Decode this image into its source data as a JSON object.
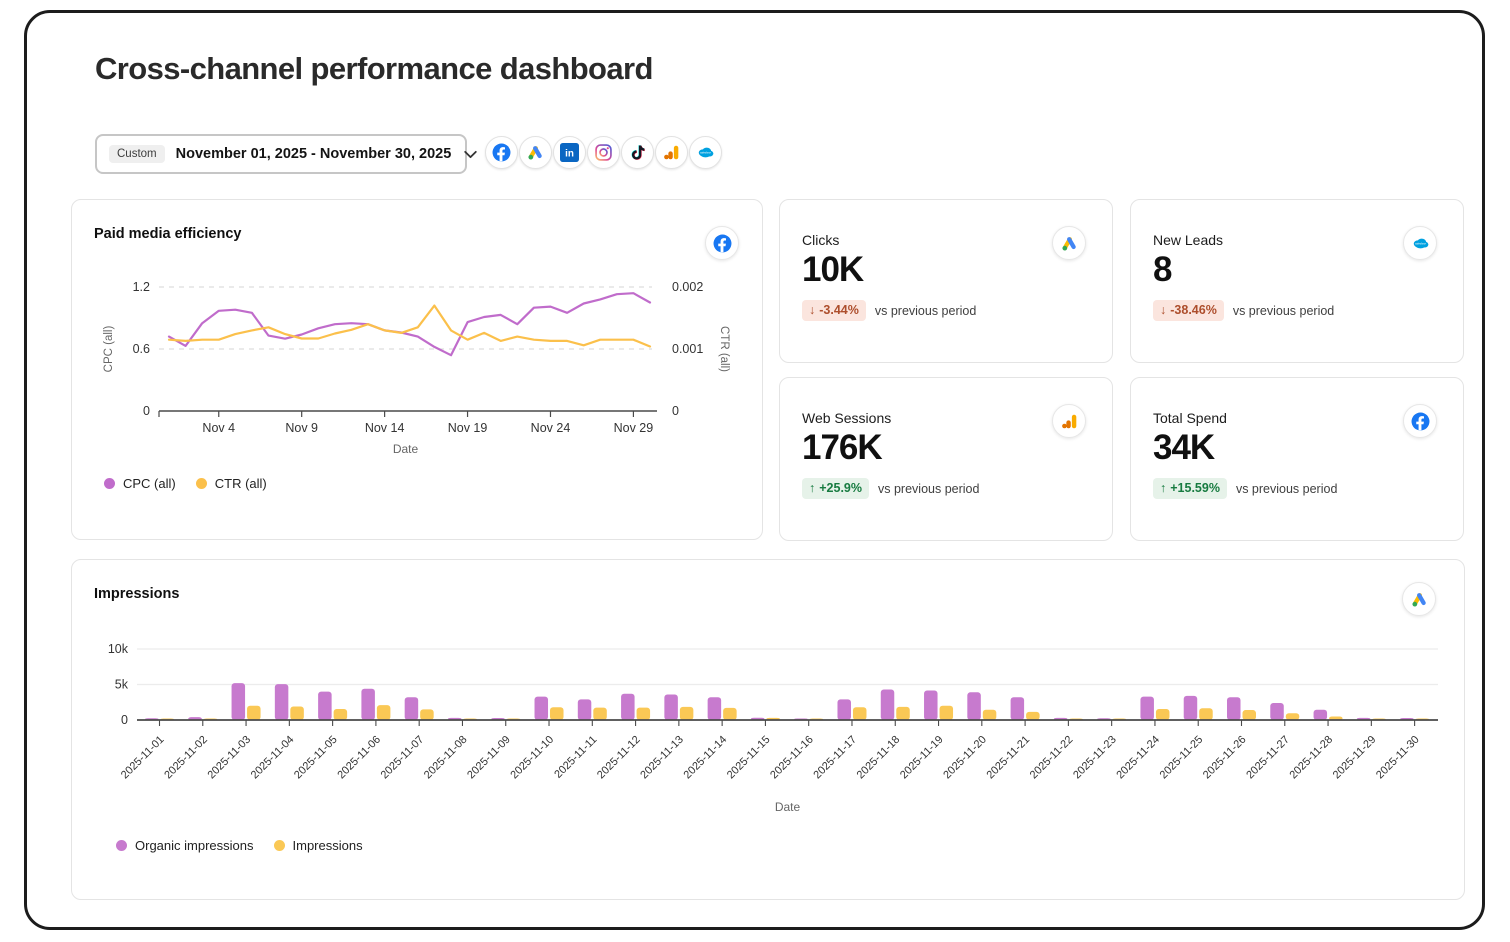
{
  "page": {
    "title": "Cross-channel performance dashboard"
  },
  "date_picker": {
    "preset_label": "Custom",
    "range": "November 01, 2025 - November 30, 2025"
  },
  "platforms": [
    {
      "name": "facebook"
    },
    {
      "name": "google-ads"
    },
    {
      "name": "linkedin"
    },
    {
      "name": "instagram"
    },
    {
      "name": "tiktok"
    },
    {
      "name": "google-analytics"
    },
    {
      "name": "salesforce"
    }
  ],
  "kpis": [
    {
      "label": "Clicks",
      "value": "10K",
      "icon": "google-ads",
      "delta": "-3.44%",
      "direction": "down",
      "compare": "vs previous period"
    },
    {
      "label": "New Leads",
      "value": "8",
      "icon": "salesforce",
      "delta": "-38.46%",
      "direction": "down",
      "compare": "vs previous period"
    },
    {
      "label": "Web Sessions",
      "value": "176K",
      "icon": "google-analytics",
      "delta": "+25.9%",
      "direction": "up",
      "compare": "vs previous period"
    },
    {
      "label": "Total Spend",
      "value": "34K",
      "icon": "facebook",
      "delta": "+15.59%",
      "direction": "up",
      "compare": "vs previous period"
    }
  ],
  "colors": {
    "purple": "#C06CCB",
    "yellow": "#FBC04B",
    "delta_down_bg": "#FBE5DE",
    "delta_down_text": "#AD4E2C",
    "delta_up_bg": "#E6F2E9",
    "delta_up_text": "#177B40",
    "facebook_blue": "#1877F2",
    "linkedin_blue": "#0A66C2",
    "salesforce_blue": "#00A1E0",
    "analytics_orange": "#F9AB00"
  },
  "chart_data": [
    {
      "type": "line",
      "title": "Paid media efficiency",
      "source_icon": "facebook",
      "xlabel": "Date",
      "x": [
        "2025-11-01",
        "2025-11-02",
        "2025-11-03",
        "2025-11-04",
        "2025-11-05",
        "2025-11-06",
        "2025-11-07",
        "2025-11-08",
        "2025-11-09",
        "2025-11-10",
        "2025-11-11",
        "2025-11-12",
        "2025-11-13",
        "2025-11-14",
        "2025-11-15",
        "2025-11-16",
        "2025-11-17",
        "2025-11-18",
        "2025-11-19",
        "2025-11-20",
        "2025-11-21",
        "2025-11-22",
        "2025-11-23",
        "2025-11-24",
        "2025-11-25",
        "2025-11-26",
        "2025-11-27",
        "2025-11-28",
        "2025-11-29",
        "2025-11-30"
      ],
      "x_ticks": [
        {
          "day": 4,
          "label": "Nov 4"
        },
        {
          "day": 9,
          "label": "Nov 9"
        },
        {
          "day": 14,
          "label": "Nov 14"
        },
        {
          "day": 19,
          "label": "Nov 19"
        },
        {
          "day": 24,
          "label": "Nov 24"
        },
        {
          "day": 29,
          "label": "Nov 29"
        }
      ],
      "left_axis": {
        "label": "CPC (all)",
        "max": 1.2,
        "ticks": [
          "0",
          "0.6",
          "1.2"
        ]
      },
      "right_axis": {
        "label": "CTR (all)",
        "max": 0.002,
        "ticks": [
          "0",
          "0.001",
          "0.002"
        ]
      },
      "grid": "dashed-horizontal",
      "legend_position": "bottom",
      "series": [
        {
          "name": "CPC (all)",
          "axis": "left",
          "color": "#C06CCB",
          "values": [
            0.72,
            0.63,
            0.85,
            0.97,
            0.98,
            0.95,
            0.73,
            0.7,
            0.74,
            0.8,
            0.84,
            0.85,
            0.84,
            0.78,
            0.76,
            0.72,
            0.62,
            0.54,
            0.86,
            0.91,
            0.93,
            0.84,
            1.0,
            1.01,
            0.95,
            1.04,
            1.08,
            1.13,
            1.14,
            1.05
          ]
        },
        {
          "name": "CTR (all)",
          "axis": "right",
          "color": "#FBC04B",
          "values": [
            0.00115,
            0.00113,
            0.00115,
            0.00115,
            0.00124,
            0.0013,
            0.00135,
            0.00124,
            0.00117,
            0.00117,
            0.00125,
            0.00131,
            0.0014,
            0.0013,
            0.00126,
            0.00135,
            0.0017,
            0.0013,
            0.00115,
            0.00126,
            0.00113,
            0.0012,
            0.00115,
            0.00113,
            0.00113,
            0.00106,
            0.00115,
            0.00115,
            0.00115,
            0.00104
          ]
        }
      ]
    },
    {
      "type": "bar",
      "title": "Impressions",
      "source_icon": "google-ads",
      "xlabel": "Date",
      "categories": [
        "2025-11-01",
        "2025-11-02",
        "2025-11-03",
        "2025-11-04",
        "2025-11-05",
        "2025-11-06",
        "2025-11-07",
        "2025-11-08",
        "2025-11-09",
        "2025-11-10",
        "2025-11-11",
        "2025-11-12",
        "2025-11-13",
        "2025-11-14",
        "2025-11-15",
        "2025-11-16",
        "2025-11-17",
        "2025-11-18",
        "2025-11-19",
        "2025-11-20",
        "2025-11-21",
        "2025-11-22",
        "2025-11-23",
        "2025-11-24",
        "2025-11-25",
        "2025-11-26",
        "2025-11-27",
        "2025-11-28",
        "2025-11-29",
        "2025-11-30"
      ],
      "y_ticks": [
        "0",
        "5k",
        "10k"
      ],
      "y_tick_values": [
        0,
        5000,
        10000
      ],
      "ylim": [
        0,
        12000
      ],
      "grid": "solid-horizontal",
      "legend_position": "bottom",
      "series": [
        {
          "name": "Organic impressions",
          "color": "#C77ACE",
          "values": [
            250,
            400,
            5200,
            5050,
            4000,
            4400,
            3200,
            300,
            280,
            3300,
            2900,
            3700,
            3600,
            3200,
            320,
            220,
            2900,
            4300,
            4150,
            3900,
            3200,
            300,
            250,
            3300,
            3400,
            3200,
            2400,
            1450,
            300,
            280
          ]
        },
        {
          "name": "Impressions",
          "color": "#FAC855",
          "values": [
            120,
            130,
            2000,
            1900,
            1550,
            2100,
            1500,
            150,
            120,
            1800,
            1750,
            1750,
            1850,
            1700,
            300,
            180,
            1800,
            1850,
            2000,
            1450,
            1150,
            160,
            140,
            1550,
            1650,
            1400,
            950,
            500,
            80,
            60
          ]
        }
      ]
    }
  ]
}
